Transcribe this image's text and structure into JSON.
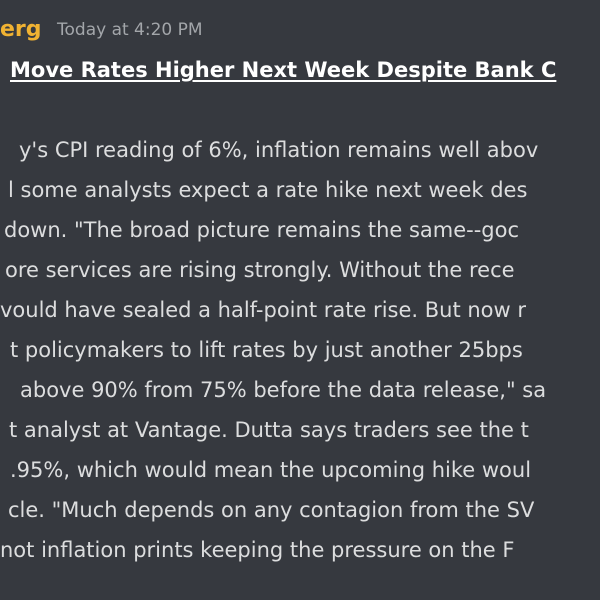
{
  "message": {
    "author": "erg",
    "timestamp": "Today at 4:20 PM",
    "headline": "Move Rates Higher Next Week Despite Bank C",
    "lines": [
      "y's CPI reading of 6%, inflation remains well abov",
      "l some analysts expect a rate hike next week des",
      "down. \"The broad picture remains the same--goc",
      "ore services are rising strongly. Without the rece",
      "vould have sealed a half-point rate rise. But now r",
      "t policymakers to lift rates by just another 25bps",
      "above 90% from 75% before the data release,\" sa",
      "t analyst at Vantage. Dutta says traders see the t",
      ".95%, which would mean the upcoming hike woul",
      "cle. \"Much depends on any contagion from the SV",
      "not inflation prints keeping the pressure on the F"
    ]
  }
}
